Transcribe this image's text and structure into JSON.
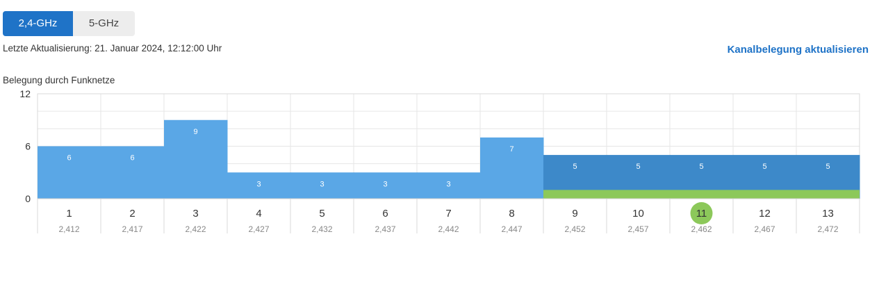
{
  "tabs": [
    {
      "label": "2,4-GHz",
      "active": true
    },
    {
      "label": "5-GHz",
      "active": false
    }
  ],
  "last_update": "Letzte Aktualisierung: 21. Januar 2024, 12:12:00 Uhr",
  "refresh_label": "Kanalbelegung aktualisieren",
  "chart_data": {
    "type": "bar",
    "title": "Belegung durch Funknetze",
    "categories": [
      "1",
      "2",
      "3",
      "4",
      "5",
      "6",
      "7",
      "8",
      "9",
      "10",
      "11",
      "12",
      "13"
    ],
    "sublabels": [
      "2,412",
      "2,417",
      "2,422",
      "2,427",
      "2,432",
      "2,437",
      "2,442",
      "2,447",
      "2,452",
      "2,457",
      "2,462",
      "2,467",
      "2,472"
    ],
    "values": [
      6,
      6,
      9,
      3,
      3,
      3,
      3,
      7,
      5,
      5,
      5,
      5,
      5
    ],
    "yticks": [
      0,
      6,
      12
    ],
    "ylim": [
      0,
      12
    ],
    "own_network_channel": "11",
    "own_network_span": [
      "9",
      "13"
    ],
    "own_network_value": 1,
    "grid": true,
    "colors": {
      "bar": "#5aa7e6",
      "bar_own_span": "#3d89c9",
      "own_network": "#8cc85a",
      "selected_channel": "#8cc85a",
      "grid": "#e6e6e6",
      "accent": "#1f73c7"
    }
  }
}
